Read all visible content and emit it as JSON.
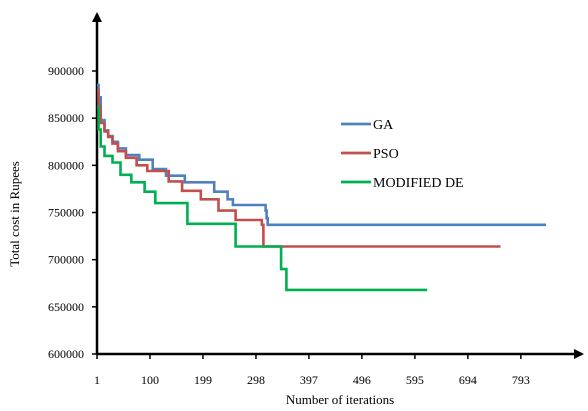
{
  "chart_data": {
    "type": "line",
    "title": "",
    "xlabel": "Number of iterations",
    "ylabel": "Total cost in Rupees",
    "x_ticks": [
      1,
      100,
      199,
      298,
      397,
      496,
      595,
      694,
      793
    ],
    "y_ticks": [
      600000,
      650000,
      700000,
      750000,
      800000,
      850000,
      900000
    ],
    "xlim": [
      1,
      920
    ],
    "ylim": [
      600000,
      920000
    ],
    "grid": false,
    "legend_position": "right",
    "series": [
      {
        "name": "GA",
        "color": "#4f81bd",
        "x": [
          1,
          4,
          8,
          15,
          22,
          30,
          40,
          55,
          80,
          105,
          130,
          165,
          220,
          245,
          255,
          300,
          316,
          318,
          320,
          350,
          400,
          500,
          600,
          700,
          800,
          840
        ],
        "y": [
          885000,
          872000,
          848000,
          837000,
          831000,
          825000,
          818000,
          811000,
          806000,
          796000,
          789000,
          782000,
          772000,
          764000,
          758000,
          758000,
          752000,
          744000,
          737000,
          737000,
          737000,
          737000,
          737000,
          737000,
          737000,
          737000
        ]
      },
      {
        "name": "PSO",
        "color": "#c0504d",
        "x": [
          1,
          4,
          8,
          15,
          22,
          30,
          40,
          55,
          75,
          95,
          135,
          160,
          195,
          228,
          260,
          309,
          312,
          350,
          450,
          550,
          650,
          740,
          755
        ],
        "y": [
          880000,
          862000,
          845000,
          836000,
          830000,
          823000,
          815000,
          808000,
          800000,
          794000,
          783000,
          773000,
          764000,
          752000,
          742000,
          737000,
          714000,
          714000,
          714000,
          714000,
          714000,
          714000,
          714000
        ]
      },
      {
        "name": "MODIFIED DE",
        "color": "#00b050",
        "x": [
          1,
          4,
          8,
          15,
          30,
          45,
          65,
          90,
          110,
          170,
          255,
          260,
          330,
          345,
          355,
          400,
          500,
          600,
          618
        ],
        "y": [
          862000,
          838000,
          820000,
          810000,
          803000,
          790000,
          782000,
          772000,
          760000,
          738000,
          738000,
          714000,
          714000,
          690000,
          668000,
          668000,
          668000,
          668000,
          668000
        ]
      }
    ]
  }
}
